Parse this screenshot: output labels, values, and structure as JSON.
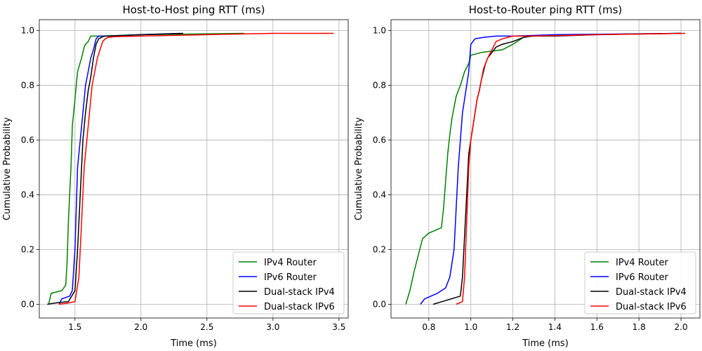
{
  "chart_data": [
    {
      "type": "line",
      "title": "Host-to-Host ping RTT (ms)",
      "xlabel": "Time (ms)",
      "ylabel": "Cumulative Probability",
      "xlim": [
        1.23,
        3.57
      ],
      "ylim": [
        -0.05,
        1.04
      ],
      "xticks": [
        1.5,
        2.0,
        2.5,
        3.0,
        3.5
      ],
      "xtick_labels": [
        "1.5",
        "2.0",
        "2.5",
        "3.0",
        "3.5"
      ],
      "yticks": [
        0.0,
        0.2,
        0.4,
        0.6,
        0.8,
        1.0
      ],
      "ytick_labels": [
        "0.0",
        "0.2",
        "0.4",
        "0.6",
        "0.8",
        "1.0"
      ],
      "grid": true,
      "legend_position": "lower-right",
      "series": [
        {
          "name": "IPv4 Router",
          "color": "#008000",
          "x": [
            1.3,
            1.32,
            1.4,
            1.43,
            1.44,
            1.45,
            1.46,
            1.47,
            1.48,
            1.49,
            1.5,
            1.51,
            1.52,
            1.55,
            1.56,
            1.57,
            1.58,
            1.6,
            1.62,
            1.64,
            1.7,
            2.0,
            2.78
          ],
          "y": [
            0.0,
            0.04,
            0.05,
            0.07,
            0.15,
            0.3,
            0.4,
            0.5,
            0.65,
            0.7,
            0.75,
            0.8,
            0.85,
            0.9,
            0.92,
            0.94,
            0.95,
            0.96,
            0.98,
            0.98,
            0.98,
            0.985,
            0.99
          ]
        },
        {
          "name": "IPv6 Router",
          "color": "#0000ff",
          "x": [
            1.38,
            1.4,
            1.46,
            1.48,
            1.5,
            1.52,
            1.54,
            1.56,
            1.58,
            1.6,
            1.62,
            1.64,
            1.66,
            1.68,
            1.7,
            1.75,
            2.0,
            2.3
          ],
          "y": [
            0.0,
            0.02,
            0.03,
            0.05,
            0.2,
            0.5,
            0.6,
            0.7,
            0.8,
            0.85,
            0.9,
            0.93,
            0.97,
            0.98,
            0.98,
            0.98,
            0.985,
            0.99
          ]
        },
        {
          "name": "Dual-stack IPv4",
          "color": "#000000",
          "x": [
            1.29,
            1.35,
            1.45,
            1.5,
            1.52,
            1.54,
            1.56,
            1.58,
            1.6,
            1.62,
            1.64,
            1.66,
            1.68,
            1.7,
            1.72,
            1.75,
            2.0,
            2.32
          ],
          "y": [
            0.0,
            0.005,
            0.01,
            0.05,
            0.2,
            0.4,
            0.6,
            0.7,
            0.78,
            0.83,
            0.9,
            0.95,
            0.97,
            0.975,
            0.98,
            0.98,
            0.985,
            0.99
          ]
        },
        {
          "name": "Dual-stack IPv6",
          "color": "#ff0000",
          "x": [
            1.38,
            1.45,
            1.5,
            1.53,
            1.55,
            1.57,
            1.59,
            1.61,
            1.63,
            1.65,
            1.67,
            1.69,
            1.71,
            1.73,
            1.75,
            1.8,
            2.0,
            2.5,
            3.0,
            3.46
          ],
          "y": [
            0.0,
            0.005,
            0.01,
            0.1,
            0.3,
            0.5,
            0.6,
            0.7,
            0.8,
            0.85,
            0.9,
            0.93,
            0.96,
            0.97,
            0.975,
            0.978,
            0.98,
            0.985,
            0.99,
            0.99
          ]
        }
      ]
    },
    {
      "type": "line",
      "title": "Host-to-Router ping RTT (ms)",
      "xlabel": "Time (ms)",
      "ylabel": "Cumulative Probability",
      "xlim": [
        0.62,
        2.09
      ],
      "ylim": [
        -0.05,
        1.04
      ],
      "xticks": [
        0.8,
        1.0,
        1.2,
        1.4,
        1.6,
        1.8,
        2.0
      ],
      "xtick_labels": [
        "0.8",
        "1.0",
        "1.2",
        "1.4",
        "1.6",
        "1.8",
        "2.0"
      ],
      "yticks": [
        0.0,
        0.2,
        0.4,
        0.6,
        0.8,
        1.0
      ],
      "ytick_labels": [
        "0.0",
        "0.2",
        "0.4",
        "0.6",
        "0.8",
        "1.0"
      ],
      "grid": true,
      "legend_position": "lower-right",
      "series": [
        {
          "name": "IPv4 Router",
          "color": "#008000",
          "x": [
            0.69,
            0.71,
            0.73,
            0.75,
            0.77,
            0.8,
            0.86,
            0.87,
            0.88,
            0.89,
            0.9,
            0.91,
            0.92,
            0.93,
            0.95,
            0.97,
            0.99,
            1.0,
            1.05,
            1.1,
            1.15,
            1.2,
            1.25,
            1.3,
            1.5,
            2.0
          ],
          "y": [
            0.0,
            0.05,
            0.12,
            0.18,
            0.24,
            0.26,
            0.28,
            0.35,
            0.45,
            0.55,
            0.62,
            0.68,
            0.72,
            0.76,
            0.8,
            0.85,
            0.88,
            0.91,
            0.92,
            0.925,
            0.93,
            0.95,
            0.975,
            0.98,
            0.985,
            0.99
          ]
        },
        {
          "name": "IPv6 Router",
          "color": "#0000ff",
          "x": [
            0.76,
            0.78,
            0.84,
            0.88,
            0.9,
            0.92,
            0.93,
            0.94,
            0.95,
            0.96,
            0.97,
            0.98,
            0.99,
            1.0,
            1.02,
            1.06,
            1.12,
            1.2,
            1.4,
            2.0
          ],
          "y": [
            0.0,
            0.02,
            0.04,
            0.06,
            0.1,
            0.2,
            0.35,
            0.5,
            0.6,
            0.7,
            0.75,
            0.8,
            0.85,
            0.95,
            0.97,
            0.975,
            0.98,
            0.98,
            0.985,
            0.99
          ]
        },
        {
          "name": "Dual-stack IPv4",
          "color": "#000000",
          "x": [
            0.82,
            0.95,
            0.96,
            0.97,
            0.98,
            0.99,
            1.0,
            1.01,
            1.02,
            1.03,
            1.04,
            1.05,
            1.06,
            1.07,
            1.08,
            1.1,
            1.12,
            1.15,
            1.2,
            1.25,
            1.28,
            1.4,
            1.6,
            2.0
          ],
          "y": [
            0.0,
            0.03,
            0.1,
            0.25,
            0.4,
            0.55,
            0.6,
            0.65,
            0.7,
            0.75,
            0.78,
            0.82,
            0.85,
            0.88,
            0.9,
            0.92,
            0.94,
            0.95,
            0.96,
            0.975,
            0.98,
            0.98,
            0.985,
            0.99
          ]
        },
        {
          "name": "Dual-stack IPv6",
          "color": "#ff0000",
          "x": [
            0.93,
            0.96,
            0.97,
            0.98,
            0.99,
            1.0,
            1.01,
            1.02,
            1.03,
            1.04,
            1.05,
            1.06,
            1.07,
            1.08,
            1.1,
            1.12,
            1.15,
            1.2,
            1.3,
            1.6,
            2.02
          ],
          "y": [
            0.0,
            0.01,
            0.1,
            0.3,
            0.5,
            0.6,
            0.65,
            0.7,
            0.75,
            0.78,
            0.82,
            0.86,
            0.88,
            0.9,
            0.93,
            0.96,
            0.97,
            0.98,
            0.98,
            0.985,
            0.99
          ]
        }
      ]
    }
  ]
}
